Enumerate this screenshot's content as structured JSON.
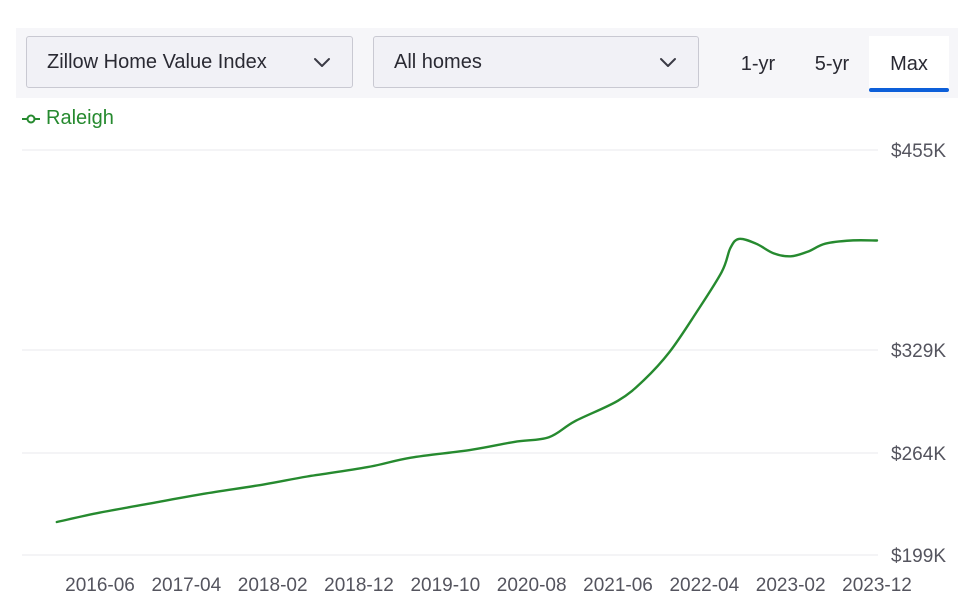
{
  "controls": {
    "metric_dropdown": "Zillow Home Value Index",
    "home_type_dropdown": "All homes",
    "range_tabs": [
      "1-yr",
      "5-yr",
      "Max"
    ],
    "active_tab": "Max"
  },
  "legend": {
    "series_name": "Raleigh"
  },
  "colors": {
    "series": "#268a2f",
    "active_tab": "#0d5fd9",
    "grid": "#e9e9ee"
  },
  "chart_data": {
    "type": "line",
    "title": "",
    "xlabel": "",
    "ylabel": "",
    "ylim": [
      199000,
      455000
    ],
    "yticks": [
      199000,
      264000,
      329000,
      455000
    ],
    "ytick_labels": [
      "$199K",
      "$264K",
      "$329K",
      "$455K"
    ],
    "xticks": [
      "2016-06",
      "2017-04",
      "2018-02",
      "2018-12",
      "2019-10",
      "2020-08",
      "2021-06",
      "2022-04",
      "2023-02",
      "2023-12"
    ],
    "grid": true,
    "legend_position": "top-left",
    "series": [
      {
        "name": "Raleigh",
        "points": [
          [
            "2016-01",
            220000
          ],
          [
            "2016-06",
            226000
          ],
          [
            "2017-01",
            233000
          ],
          [
            "2017-06",
            238000
          ],
          [
            "2018-01",
            244000
          ],
          [
            "2018-06",
            249000
          ],
          [
            "2019-01",
            255000
          ],
          [
            "2019-06",
            261000
          ],
          [
            "2020-01",
            266000
          ],
          [
            "2020-06",
            271000
          ],
          [
            "2020-10",
            274000
          ],
          [
            "2021-01",
            284000
          ],
          [
            "2021-06",
            297000
          ],
          [
            "2021-09",
            310000
          ],
          [
            "2021-12",
            328000
          ],
          [
            "2022-03",
            352000
          ],
          [
            "2022-06",
            378000
          ],
          [
            "2022-07",
            393000
          ],
          [
            "2022-08",
            399000
          ],
          [
            "2022-10",
            396000
          ],
          [
            "2022-12",
            390000
          ],
          [
            "2023-02",
            388000
          ],
          [
            "2023-04",
            391000
          ],
          [
            "2023-06",
            396000
          ],
          [
            "2023-09",
            398000
          ],
          [
            "2023-12",
            398000
          ]
        ]
      }
    ]
  }
}
